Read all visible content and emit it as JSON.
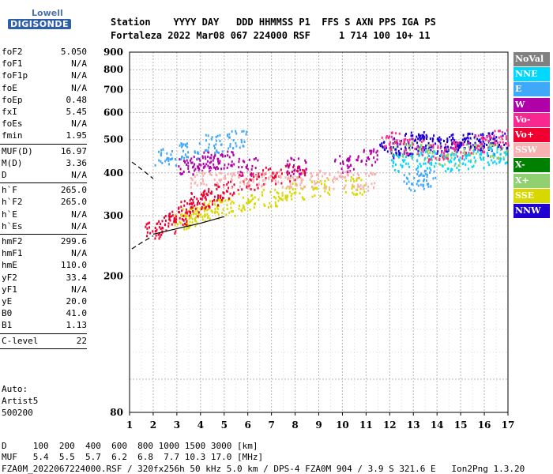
{
  "logo": {
    "line1": "Lowell",
    "line2": "DIGISONDE"
  },
  "header": {
    "line1": "Station    YYYY DAY   DDD HHMMSS P1  FFS S AXN PPS IGA PS",
    "line2": "Fortaleza 2022 Mar08 067 224000 RSF     1 714 100 10+ 11"
  },
  "params_group1": [
    {
      "name": "foF2",
      "value": "5.050"
    },
    {
      "name": "foF1",
      "value": "N/A"
    },
    {
      "name": "foF1p",
      "value": "N/A"
    },
    {
      "name": "foE",
      "value": "N/A"
    },
    {
      "name": "foEp",
      "value": "0.48"
    },
    {
      "name": "fxI",
      "value": "5.45"
    },
    {
      "name": "foEs",
      "value": "N/A"
    },
    {
      "name": "fmin",
      "value": "1.95"
    }
  ],
  "params_group2": [
    {
      "name": "MUF(D)",
      "value": "16.97"
    },
    {
      "name": "M(D)",
      "value": "3.36"
    },
    {
      "name": "D",
      "value": "N/A"
    }
  ],
  "params_group3": [
    {
      "name": "h`F",
      "value": "265.0"
    },
    {
      "name": "h`F2",
      "value": "265.0"
    },
    {
      "name": "h`E",
      "value": "N/A"
    },
    {
      "name": "h`Es",
      "value": "N/A"
    }
  ],
  "params_group4": [
    {
      "name": "hmF2",
      "value": "299.6"
    },
    {
      "name": "hmF1",
      "value": "N/A"
    },
    {
      "name": "hmE",
      "value": "110.0"
    },
    {
      "name": "yF2",
      "value": "33.4"
    },
    {
      "name": "yF1",
      "value": "N/A"
    },
    {
      "name": "yE",
      "value": "20.0"
    },
    {
      "name": "B0",
      "value": "41.0"
    },
    {
      "name": "B1",
      "value": "1.13"
    }
  ],
  "params_group5": [
    {
      "name": "C-level",
      "value": "22"
    }
  ],
  "auto": {
    "label": "Auto:",
    "program": "Artist5",
    "version": "500200"
  },
  "legend": [
    {
      "label": "NoVal",
      "color": "#808080"
    },
    {
      "label": "NNE",
      "color": "#00d8ff"
    },
    {
      "label": "E",
      "color": "#40a8f8"
    },
    {
      "label": "W",
      "color": "#b000a8"
    },
    {
      "label": "Vo-",
      "color": "#f82890"
    },
    {
      "label": "Vo+",
      "color": "#f00030"
    },
    {
      "label": "SSW",
      "color": "#f8b0b0"
    },
    {
      "label": "X-",
      "color": "#008000"
    },
    {
      "label": "X+",
      "color": "#90d070"
    },
    {
      "label": "SSE",
      "color": "#d8d800"
    },
    {
      "label": "NNW",
      "color": "#2000d0"
    }
  ],
  "chart_data": {
    "type": "scatter",
    "title": "",
    "xlabel": "",
    "ylabel": "",
    "xlim": [
      1,
      17
    ],
    "ylim": [
      80,
      900
    ],
    "y_scale": "log",
    "grid": true,
    "x_ticks": [
      1,
      2,
      3,
      4,
      5,
      6,
      7,
      8,
      9,
      10,
      11,
      12,
      13,
      14,
      15,
      16,
      17
    ],
    "y_ticks": [
      80,
      200,
      300,
      400,
      500,
      600,
      700,
      800,
      900
    ],
    "series": [
      {
        "name": "SSE",
        "color": "#d8d800",
        "points": [
          [
            3.2,
            290
          ],
          [
            3.6,
            300
          ],
          [
            4.0,
            305
          ],
          [
            4.5,
            315
          ],
          [
            5.0,
            320
          ],
          [
            6.0,
            330
          ],
          [
            7.0,
            340
          ],
          [
            8.0,
            355
          ],
          [
            9.0,
            365
          ],
          [
            10.5,
            370
          ]
        ]
      },
      {
        "name": "Vo+",
        "color": "#f00030",
        "points": [
          [
            2.0,
            275
          ],
          [
            2.5,
            285
          ],
          [
            3.0,
            300
          ],
          [
            3.5,
            320
          ],
          [
            4.0,
            335
          ],
          [
            4.5,
            345
          ],
          [
            5.0,
            360
          ],
          [
            6.0,
            380
          ],
          [
            7.0,
            395
          ],
          [
            8.0,
            405
          ]
        ]
      },
      {
        "name": "W",
        "color": "#b000a8",
        "points": [
          [
            3.5,
            420
          ],
          [
            4.0,
            430
          ],
          [
            4.5,
            440
          ],
          [
            5.0,
            440
          ],
          [
            6.0,
            420
          ],
          [
            8.0,
            420
          ],
          [
            10.0,
            430
          ],
          [
            11.0,
            450
          ]
        ]
      },
      {
        "name": "E",
        "color": "#40a8f8",
        "points": [
          [
            2.5,
            450
          ],
          [
            3.5,
            470
          ],
          [
            4.5,
            490
          ],
          [
            5.5,
            505
          ],
          [
            13.0,
            380
          ],
          [
            13.5,
            390
          ]
        ]
      },
      {
        "name": "SSW",
        "color": "#f8b0b0",
        "points": [
          [
            4.0,
            385
          ],
          [
            5.0,
            385
          ],
          [
            6.0,
            385
          ],
          [
            7.0,
            385
          ],
          [
            8.0,
            385
          ],
          [
            9.0,
            385
          ],
          [
            10.0,
            385
          ],
          [
            11.0,
            380
          ]
        ]
      },
      {
        "name": "NNW",
        "color": "#2000d0",
        "points": [
          [
            12.0,
            470
          ],
          [
            12.5,
            480
          ],
          [
            13.0,
            500
          ],
          [
            13.5,
            490
          ],
          [
            14.0,
            480
          ],
          [
            14.5,
            490
          ],
          [
            15.0,
            500
          ],
          [
            15.5,
            495
          ],
          [
            16.0,
            480
          ],
          [
            16.5,
            500
          ]
        ]
      },
      {
        "name": "X+",
        "color": "#90d070",
        "points": [
          [
            12.5,
            470
          ],
          [
            13.5,
            460
          ],
          [
            14.5,
            450
          ],
          [
            15.5,
            460
          ],
          [
            16.5,
            470
          ]
        ]
      },
      {
        "name": "Vo-",
        "color": "#f82890",
        "points": [
          [
            12.0,
            500
          ],
          [
            13.0,
            480
          ],
          [
            14.0,
            460
          ],
          [
            15.0,
            470
          ],
          [
            16.0,
            490
          ],
          [
            16.8,
            510
          ]
        ]
      },
      {
        "name": "NNE",
        "color": "#00d8ff",
        "points": [
          [
            12.5,
            430
          ],
          [
            13.5,
            440
          ],
          [
            14.5,
            430
          ],
          [
            15.5,
            440
          ],
          [
            16.5,
            450
          ]
        ]
      }
    ],
    "profile_lines": [
      {
        "style": "solid",
        "points": [
          [
            2.0,
            265
          ],
          [
            3.0,
            275
          ],
          [
            4.0,
            285
          ],
          [
            5.0,
            298
          ]
        ]
      },
      {
        "style": "dashed",
        "points": [
          [
            1.1,
            240
          ],
          [
            1.5,
            250
          ],
          [
            2.0,
            262
          ]
        ]
      },
      {
        "style": "dashed",
        "points": [
          [
            1.1,
            430
          ],
          [
            1.5,
            410
          ],
          [
            2.0,
            385
          ]
        ]
      }
    ]
  },
  "footer": {
    "d_row": "D     100  200  400  600  800 1000 1500 3000 [km]",
    "muf_row": "MUF   5.4  5.5  5.7  6.2  6.8  7.7 10.3 17.0 [MHz]",
    "info": "FZA0M_2022067224000.RSF / 320fx256h 50 kHz 5.0 km / DPS-4 FZA0M 904 / 3.9 S 321.6 E   Ion2Png 1.3.20"
  }
}
